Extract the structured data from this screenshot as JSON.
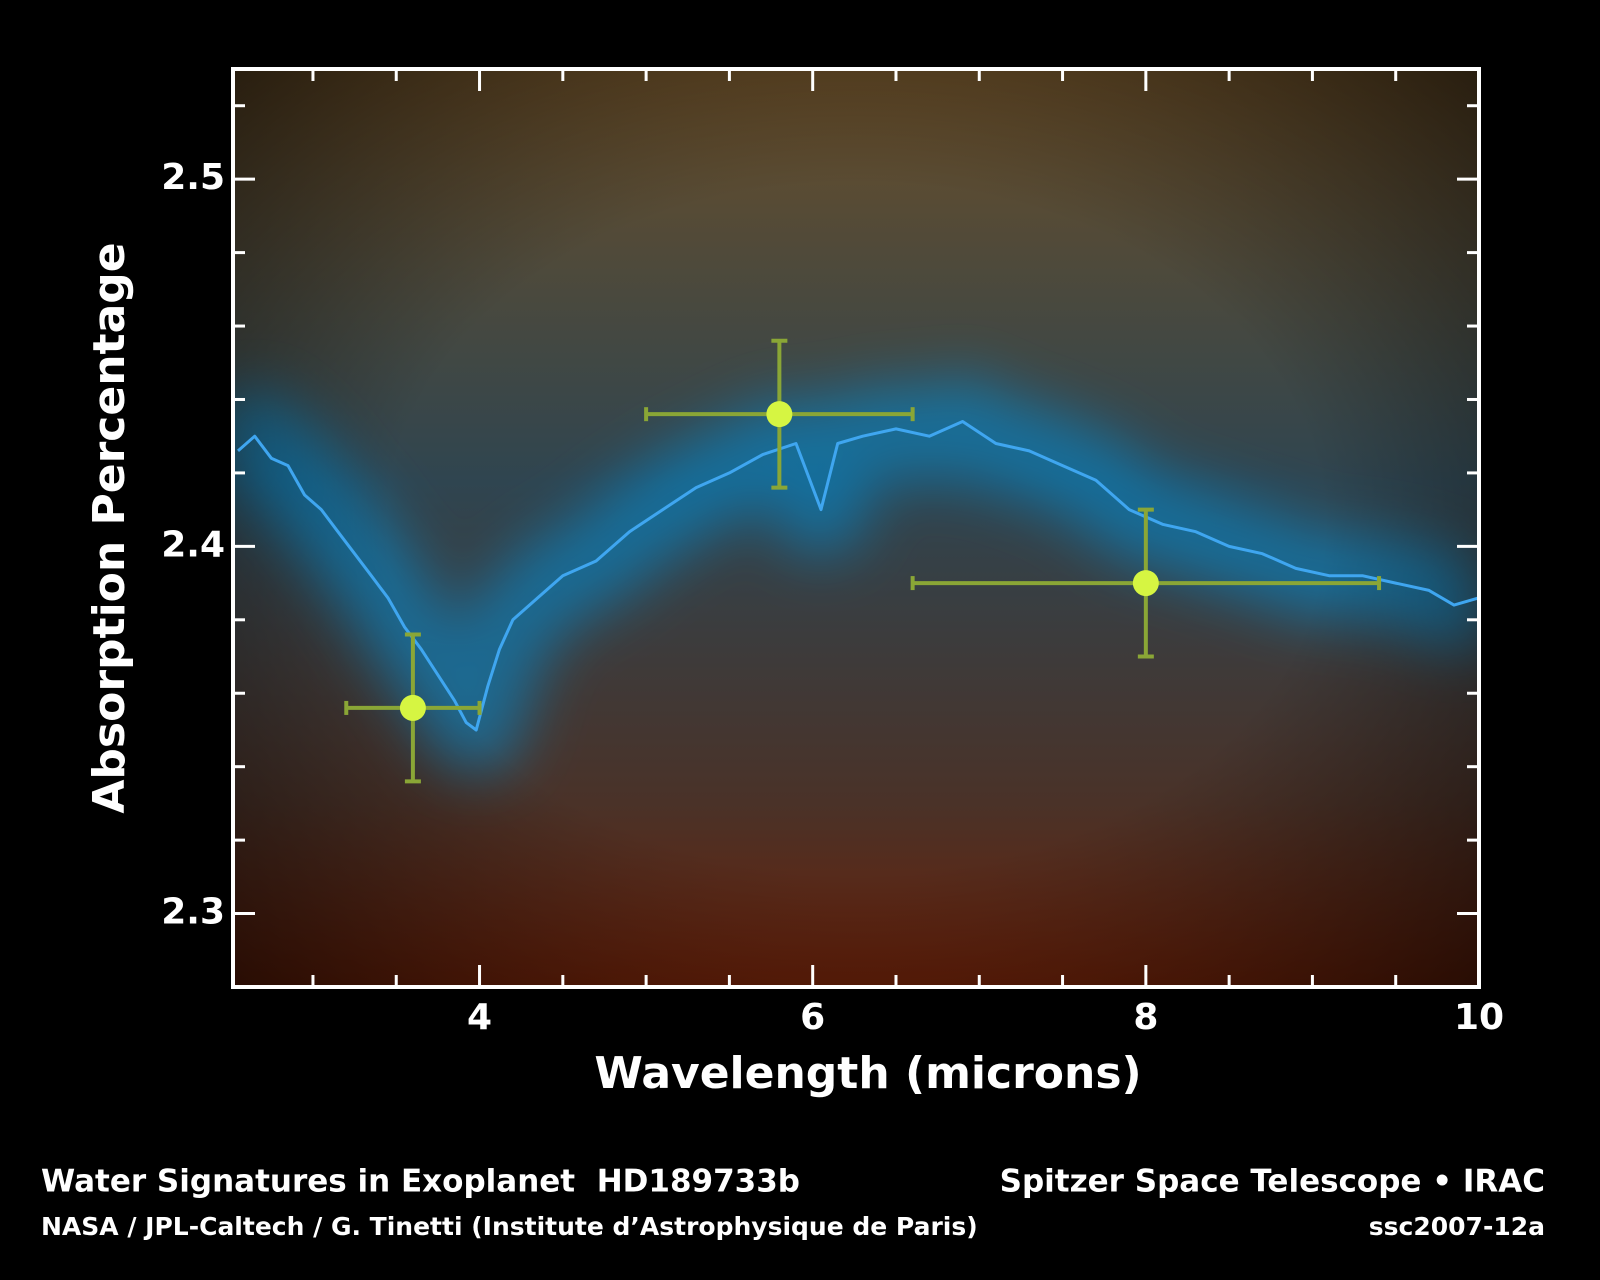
{
  "chart_data": {
    "type": "errorbar",
    "x_label": "Wavelength (microns)",
    "y_label": "Absorption Percentage",
    "xlim": [
      2.52,
      10
    ],
    "ylim": [
      2.28,
      2.53
    ],
    "xticks": [
      4,
      6,
      8,
      10
    ],
    "yticks": [
      2.3,
      2.4,
      2.5
    ],
    "xticks_minor": [
      3,
      3.5,
      4.5,
      5,
      5.5,
      6.5,
      7,
      7.5,
      8.5,
      9,
      9.5
    ],
    "yticks_minor": [
      2.28,
      2.32,
      2.34,
      2.36,
      2.38,
      2.42,
      2.44,
      2.46,
      2.48,
      2.52
    ],
    "spectrum": {
      "color": "#3fa6f0",
      "x": [
        2.55,
        2.65,
        2.75,
        2.85,
        2.95,
        3.05,
        3.15,
        3.25,
        3.35,
        3.45,
        3.55,
        3.65,
        3.75,
        3.85,
        3.92,
        3.98,
        4.05,
        4.12,
        4.2,
        4.35,
        4.5,
        4.7,
        4.9,
        5.1,
        5.3,
        5.5,
        5.7,
        5.9,
        6.05,
        6.15,
        6.3,
        6.5,
        6.7,
        6.9,
        7.1,
        7.3,
        7.5,
        7.7,
        7.9,
        8.1,
        8.3,
        8.5,
        8.7,
        8.9,
        9.1,
        9.3,
        9.5,
        9.7,
        9.85,
        10.0
      ],
      "values": [
        2.426,
        2.43,
        2.424,
        2.422,
        2.414,
        2.41,
        2.404,
        2.398,
        2.392,
        2.386,
        2.378,
        2.372,
        2.365,
        2.358,
        2.352,
        2.35,
        2.362,
        2.372,
        2.38,
        2.386,
        2.392,
        2.396,
        2.404,
        2.41,
        2.416,
        2.42,
        2.425,
        2.428,
        2.41,
        2.428,
        2.43,
        2.432,
        2.43,
        2.434,
        2.428,
        2.426,
        2.422,
        2.418,
        2.41,
        2.406,
        2.404,
        2.4,
        2.398,
        2.394,
        2.392,
        2.392,
        2.39,
        2.388,
        2.384,
        2.386
      ]
    },
    "measurements": {
      "color": "#d6f542",
      "bar_color": "#8aa636",
      "x": [
        3.6,
        5.8,
        8.0
      ],
      "x_err": [
        0.4,
        0.8,
        1.4
      ],
      "values": [
        2.356,
        2.436,
        2.39
      ],
      "y_err": [
        0.02,
        0.02,
        0.02
      ]
    },
    "footer": {
      "title": "Water Signatures in Exoplanet  HD189733b",
      "instrument": "Spitzer Space Telescope • IRAC",
      "credit": "NASA / JPL-Caltech / G. Tinetti (Institute d’Astrophysique de Paris)",
      "id": "ssc2007-12a"
    }
  }
}
